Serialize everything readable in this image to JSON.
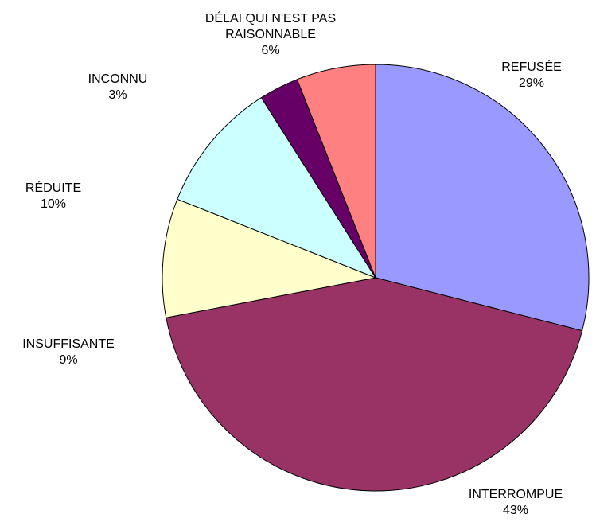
{
  "chart_data": {
    "type": "pie",
    "categories": [
      "REFUSÉE",
      "INTERROMPUE",
      "INSUFFISANTE",
      "RÉDUITE",
      "INCONNU",
      "DÉLAI QUI N'EST PAS RAISONNABLE"
    ],
    "values": [
      29,
      43,
      9,
      10,
      3,
      6
    ],
    "value_labels": [
      "29%",
      "43%",
      "9%",
      "10%",
      "3%",
      "6%"
    ],
    "colors": [
      "#9999ff",
      "#993366",
      "#ffffcc",
      "#ccffff",
      "#660066",
      "#ff8080"
    ]
  }
}
